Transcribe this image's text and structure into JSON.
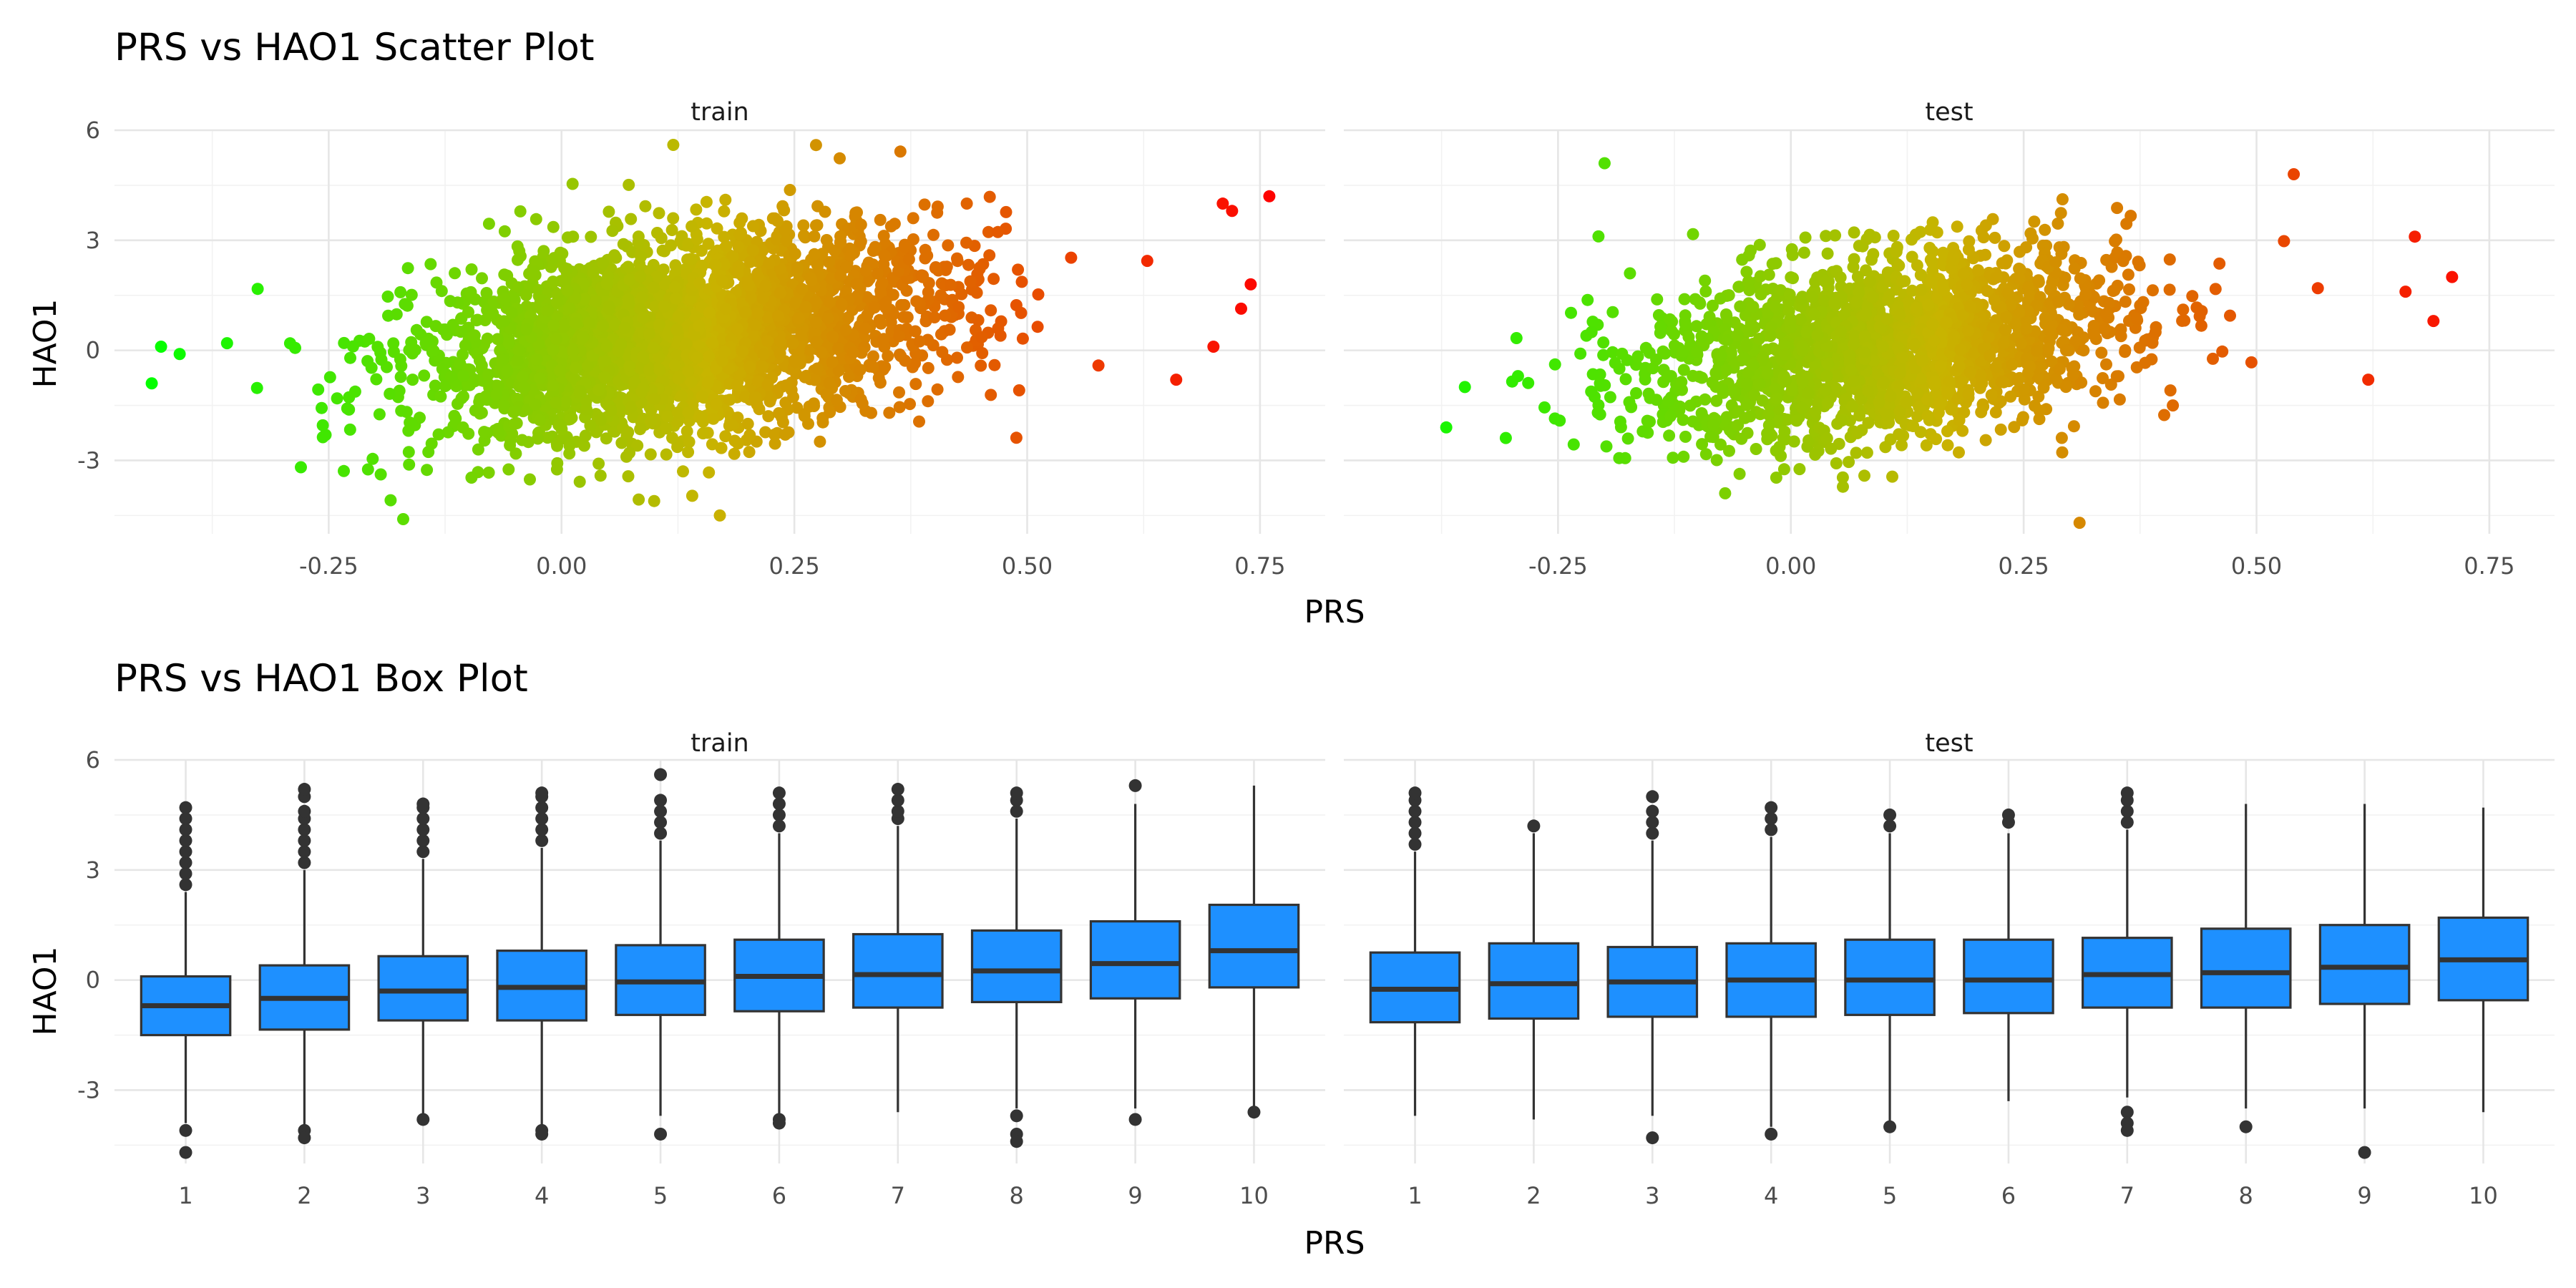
{
  "colors": {
    "low": "#00ff00",
    "mid": "#c8b400",
    "high": "#ff0000",
    "box_fill": "#1e90ff",
    "box_line": "#333333"
  },
  "scatter": {
    "title": "PRS vs HAO1 Scatter Plot",
    "xlabel": "PRS",
    "ylabel": "HAO1"
  },
  "box": {
    "title": "PRS vs HAO1 Box Plot",
    "xlabel": "PRS",
    "ylabel": "HAO1"
  },
  "chart_data": [
    {
      "type": "scatter",
      "title": "PRS vs HAO1 Scatter Plot",
      "xlabel": "PRS",
      "ylabel": "HAO1",
      "xlim": [
        -0.48,
        0.82
      ],
      "ylim": [
        -5.0,
        6.0
      ],
      "xticks": [
        "-0.25",
        "0.00",
        "0.25",
        "0.50",
        "0.75"
      ],
      "yticks": [
        "-3",
        "0",
        "3",
        "6"
      ],
      "grid": true,
      "color_scale": "PRS, green (low) to red (high)",
      "panels": [
        {
          "name": "train",
          "cloud": {
            "x_center": 0.13,
            "x_sd": 0.14,
            "y_center": 0.4,
            "y_sd": 1.3,
            "n_points_drawn": 3000
          },
          "notable_points": [
            {
              "x": -0.43,
              "y": 0.1
            },
            {
              "x": -0.44,
              "y": -0.9
            },
            {
              "x": -0.41,
              "y": -0.1
            },
            {
              "x": 0.76,
              "y": 4.2
            },
            {
              "x": 0.74,
              "y": 1.8
            },
            {
              "x": 0.72,
              "y": 3.8
            },
            {
              "x": 0.71,
              "y": 4.0
            },
            {
              "x": 0.12,
              "y": 5.6
            },
            {
              "x": -0.17,
              "y": -4.6
            },
            {
              "x": 0.17,
              "y": -4.5
            },
            {
              "x": 0.7,
              "y": 0.1
            },
            {
              "x": 0.66,
              "y": -0.8
            }
          ]
        },
        {
          "name": "test",
          "cloud": {
            "x_center": 0.1,
            "x_sd": 0.13,
            "y_center": 0.1,
            "y_sd": 1.25,
            "n_points_drawn": 2000
          },
          "notable_points": [
            {
              "x": -0.37,
              "y": -2.1
            },
            {
              "x": -0.35,
              "y": -1.0
            },
            {
              "x": -0.2,
              "y": 5.1
            },
            {
              "x": 0.71,
              "y": 2.0
            },
            {
              "x": 0.69,
              "y": 0.8
            },
            {
              "x": 0.67,
              "y": 3.1
            },
            {
              "x": 0.62,
              "y": -0.8
            },
            {
              "x": 0.31,
              "y": -4.7
            },
            {
              "x": 0.54,
              "y": 4.8
            },
            {
              "x": 0.66,
              "y": 1.6
            }
          ]
        }
      ]
    },
    {
      "type": "box",
      "title": "PRS vs HAO1 Box Plot",
      "xlabel": "PRS",
      "ylabel": "HAO1",
      "categories": [
        "1",
        "2",
        "3",
        "4",
        "5",
        "6",
        "7",
        "8",
        "9",
        "10"
      ],
      "ylim": [
        -5.0,
        6.0
      ],
      "yticks": [
        "-3",
        "0",
        "3",
        "6"
      ],
      "grid": true,
      "panels": [
        {
          "name": "train",
          "boxes": [
            {
              "q1": -1.5,
              "median": -0.7,
              "q3": 0.1,
              "whisker_low": -3.9,
              "whisker_high": 2.4,
              "outliers": [
                2.6,
                2.9,
                3.2,
                3.5,
                3.8,
                4.1,
                4.4,
                4.7,
                -4.1,
                -4.7
              ]
            },
            {
              "q1": -1.35,
              "median": -0.5,
              "q3": 0.4,
              "whisker_low": -4.0,
              "whisker_high": 3.0,
              "outliers": [
                3.2,
                3.5,
                3.8,
                4.1,
                4.4,
                4.6,
                5.0,
                5.2,
                -4.1,
                -4.3
              ]
            },
            {
              "q1": -1.1,
              "median": -0.3,
              "q3": 0.65,
              "whisker_low": -3.7,
              "whisker_high": 3.3,
              "outliers": [
                3.5,
                3.8,
                4.1,
                4.4,
                4.7,
                4.8,
                -3.8
              ]
            },
            {
              "q1": -1.1,
              "median": -0.2,
              "q3": 0.8,
              "whisker_low": -4.0,
              "whisker_high": 3.6,
              "outliers": [
                3.8,
                4.1,
                4.4,
                4.7,
                5.0,
                5.1,
                -4.1,
                -4.2
              ]
            },
            {
              "q1": -0.95,
              "median": -0.05,
              "q3": 0.95,
              "whisker_low": -3.7,
              "whisker_high": 3.8,
              "outliers": [
                4.0,
                4.3,
                4.6,
                4.9,
                5.6,
                -4.2
              ]
            },
            {
              "q1": -0.85,
              "median": 0.1,
              "q3": 1.1,
              "whisker_low": -3.7,
              "whisker_high": 4.0,
              "outliers": [
                4.2,
                4.5,
                4.8,
                5.1,
                -3.8,
                -3.9
              ]
            },
            {
              "q1": -0.75,
              "median": 0.15,
              "q3": 1.25,
              "whisker_low": -3.6,
              "whisker_high": 4.2,
              "outliers": [
                4.4,
                4.6,
                4.9,
                5.2
              ]
            },
            {
              "q1": -0.6,
              "median": 0.25,
              "q3": 1.35,
              "whisker_low": -3.5,
              "whisker_high": 4.4,
              "outliers": [
                4.6,
                4.9,
                5.1,
                -3.7,
                -4.2,
                -4.4
              ]
            },
            {
              "q1": -0.5,
              "median": 0.45,
              "q3": 1.6,
              "whisker_low": -3.5,
              "whisker_high": 4.8,
              "outliers": [
                5.3,
                -3.8
              ]
            },
            {
              "q1": -0.2,
              "median": 0.8,
              "q3": 2.05,
              "whisker_low": -3.5,
              "whisker_high": 5.3,
              "outliers": [
                -3.6
              ]
            }
          ]
        },
        {
          "name": "test",
          "boxes": [
            {
              "q1": -1.15,
              "median": -0.25,
              "q3": 0.75,
              "whisker_low": -3.7,
              "whisker_high": 3.5,
              "outliers": [
                3.7,
                4.0,
                4.3,
                4.6,
                4.9,
                5.1
              ]
            },
            {
              "q1": -1.05,
              "median": -0.1,
              "q3": 1.0,
              "whisker_low": -3.8,
              "whisker_high": 4.0,
              "outliers": [
                4.2
              ]
            },
            {
              "q1": -1.0,
              "median": -0.05,
              "q3": 0.9,
              "whisker_low": -3.7,
              "whisker_high": 3.8,
              "outliers": [
                4.0,
                4.3,
                4.6,
                5.0,
                -4.3
              ]
            },
            {
              "q1": -1.0,
              "median": 0.0,
              "q3": 1.0,
              "whisker_low": -4.0,
              "whisker_high": 3.9,
              "outliers": [
                4.1,
                4.4,
                4.7,
                -4.2
              ]
            },
            {
              "q1": -0.95,
              "median": 0.0,
              "q3": 1.1,
              "whisker_low": -3.9,
              "whisker_high": 4.0,
              "outliers": [
                4.2,
                4.5,
                -4.0
              ]
            },
            {
              "q1": -0.9,
              "median": 0.0,
              "q3": 1.1,
              "whisker_low": -3.3,
              "whisker_high": 4.0,
              "outliers": [
                4.3,
                4.5
              ]
            },
            {
              "q1": -0.75,
              "median": 0.15,
              "q3": 1.15,
              "whisker_low": -3.2,
              "whisker_high": 4.1,
              "outliers": [
                4.3,
                4.6,
                4.9,
                5.1,
                -3.6,
                -3.9,
                -4.1
              ]
            },
            {
              "q1": -0.75,
              "median": 0.2,
              "q3": 1.4,
              "whisker_low": -3.5,
              "whisker_high": 4.8,
              "outliers": [
                -4.0
              ]
            },
            {
              "q1": -0.65,
              "median": 0.35,
              "q3": 1.5,
              "whisker_low": -3.5,
              "whisker_high": 4.8,
              "outliers": [
                -4.7
              ]
            },
            {
              "q1": -0.55,
              "median": 0.55,
              "q3": 1.7,
              "whisker_low": -3.6,
              "whisker_high": 4.7,
              "outliers": []
            }
          ]
        }
      ]
    }
  ]
}
